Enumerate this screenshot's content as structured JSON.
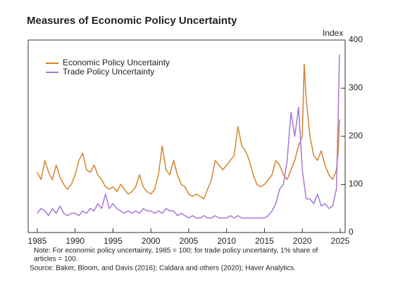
{
  "chart_data": {
    "type": "line",
    "title": "Measures of Economic Policy Uncertainty",
    "y_label": "Index",
    "x": [
      1985,
      1985.5,
      1986,
      1986.5,
      1987,
      1987.5,
      1988,
      1988.5,
      1989,
      1989.5,
      1990,
      1990.5,
      1991,
      1991.5,
      1992,
      1992.5,
      1993,
      1993.5,
      1994,
      1994.5,
      1995,
      1995.5,
      1996,
      1996.5,
      1997,
      1997.5,
      1998,
      1998.5,
      1999,
      1999.5,
      2000,
      2000.5,
      2001,
      2001.5,
      2002,
      2002.5,
      2003,
      2003.5,
      2004,
      2004.5,
      2005,
      2005.5,
      2006,
      2006.5,
      2007,
      2007.5,
      2008,
      2008.5,
      2009,
      2009.5,
      2010,
      2010.5,
      2011,
      2011.5,
      2012,
      2012.5,
      2013,
      2013.5,
      2014,
      2014.5,
      2015,
      2015.5,
      2016,
      2016.5,
      2017,
      2017.5,
      2018,
      2018.5,
      2019,
      2019.5,
      2020,
      2020.25,
      2020.5,
      2021,
      2021.5,
      2022,
      2022.5,
      2023,
      2023.5,
      2024,
      2024.5,
      2024.75,
      2024.9
    ],
    "series": [
      {
        "name": "Economic Policy Uncertainty",
        "color": "#d4842c",
        "values": [
          125,
          110,
          150,
          125,
          110,
          140,
          115,
          100,
          90,
          100,
          120,
          150,
          165,
          130,
          125,
          140,
          120,
          110,
          95,
          90,
          95,
          85,
          100,
          90,
          80,
          85,
          95,
          120,
          95,
          85,
          80,
          90,
          120,
          180,
          130,
          120,
          150,
          120,
          100,
          95,
          80,
          75,
          80,
          75,
          70,
          90,
          110,
          150,
          140,
          130,
          140,
          150,
          160,
          220,
          180,
          170,
          150,
          120,
          100,
          95,
          100,
          110,
          120,
          150,
          140,
          120,
          110,
          130,
          150,
          180,
          200,
          350,
          280,
          200,
          160,
          150,
          170,
          140,
          120,
          110,
          130,
          170,
          235
        ]
      },
      {
        "name": "Trade Policy Uncertainty",
        "color": "#a777d6",
        "values": [
          40,
          50,
          45,
          35,
          50,
          40,
          55,
          40,
          35,
          40,
          40,
          35,
          45,
          40,
          50,
          45,
          60,
          50,
          80,
          50,
          60,
          50,
          45,
          40,
          45,
          40,
          45,
          40,
          50,
          45,
          45,
          40,
          45,
          40,
          50,
          45,
          45,
          35,
          40,
          35,
          30,
          35,
          30,
          30,
          35,
          30,
          30,
          35,
          30,
          30,
          30,
          35,
          30,
          35,
          30,
          30,
          30,
          30,
          30,
          30,
          30,
          35,
          45,
          60,
          90,
          100,
          150,
          250,
          200,
          260,
          130,
          100,
          70,
          70,
          60,
          80,
          55,
          60,
          50,
          55,
          90,
          250,
          370
        ]
      }
    ],
    "xlim": [
      1983.8,
      2025.65
    ],
    "xticks": [
      1985,
      1990,
      1995,
      2000,
      2005,
      2010,
      2015,
      2020,
      2025
    ],
    "ylim": [
      0,
      400
    ],
    "yticks": [
      0,
      100,
      200,
      300,
      400
    ],
    "legend": "upper-left",
    "notes": [
      "Note: For economic policy uncertainty, 1985 = 100; for trade policy uncertainty, 1% share of",
      "articles = 100.",
      "Source: Baker, Bloom, and Davis (2016); Caldara and others (2020);  Haver Analytics."
    ]
  }
}
